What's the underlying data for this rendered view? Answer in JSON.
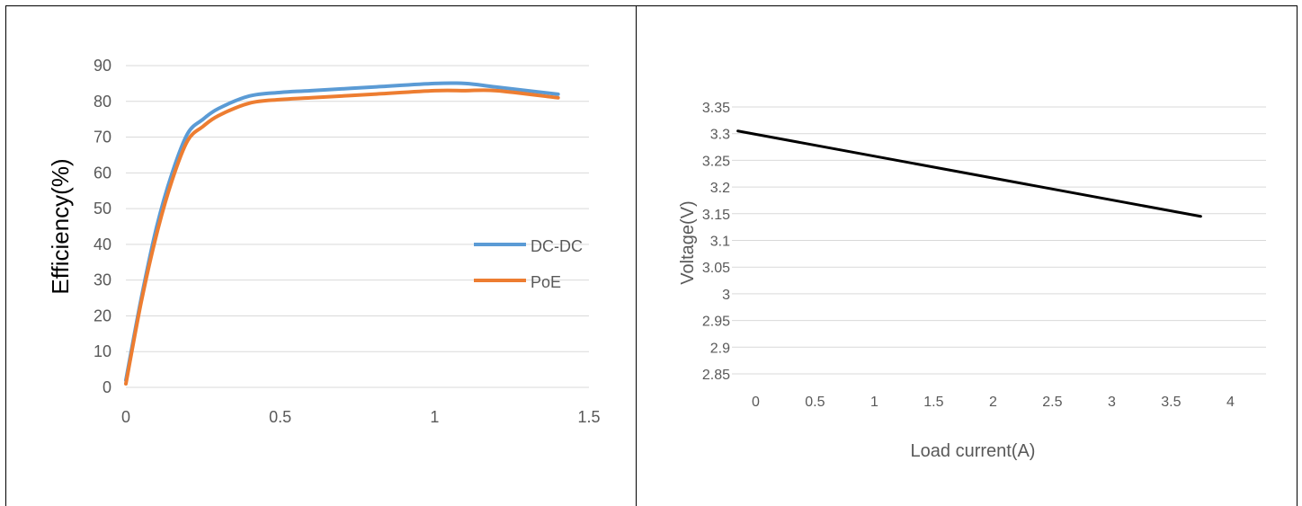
{
  "chart_data": [
    {
      "type": "line",
      "title": "",
      "xlabel": "",
      "ylabel": "Efficiency(%)",
      "xlim": [
        0,
        1.5
      ],
      "ylim": [
        0,
        90
      ],
      "x_ticks": [
        "0",
        "0.5",
        "1",
        "1.5"
      ],
      "y_ticks": [
        "0",
        "10",
        "20",
        "30",
        "40",
        "50",
        "60",
        "70",
        "80",
        "90"
      ],
      "grid": true,
      "legend": "right",
      "series": [
        {
          "name": "DC-DC",
          "color": "#5b9bd5",
          "x": [
            0,
            0.05,
            0.1,
            0.15,
            0.2,
            0.25,
            0.3,
            0.4,
            0.5,
            0.6,
            0.8,
            1.0,
            1.1,
            1.2,
            1.4
          ],
          "y": [
            2,
            25,
            45,
            60,
            71,
            75,
            78,
            81.5,
            82.5,
            83,
            84,
            85,
            85,
            84,
            82
          ]
        },
        {
          "name": "PoE",
          "color": "#ed7d31",
          "x": [
            0,
            0.05,
            0.1,
            0.15,
            0.2,
            0.25,
            0.3,
            0.4,
            0.5,
            0.6,
            0.8,
            1.0,
            1.1,
            1.2,
            1.4
          ],
          "y": [
            1,
            24,
            43,
            58,
            69,
            73,
            76,
            79.5,
            80.5,
            81,
            82,
            83,
            83,
            83,
            81
          ]
        }
      ]
    },
    {
      "type": "line",
      "title": "",
      "xlabel": "Load current(A)",
      "ylabel": "Voltage(V)",
      "xlim": [
        -0.2,
        4.3
      ],
      "ylim": [
        2.85,
        3.35
      ],
      "x_ticks": [
        "0",
        "0.5",
        "1",
        "1.5",
        "2",
        "2.5",
        "3",
        "3.5",
        "4"
      ],
      "y_ticks": [
        "2.85",
        "2.9",
        "2.95",
        "3",
        "3.05",
        "3.1",
        "3.15",
        "3.2",
        "3.25",
        "3.3",
        "3.35"
      ],
      "grid": true,
      "legend": "none",
      "series": [
        {
          "color": "#000000",
          "x": [
            -0.15,
            3.75
          ],
          "y": [
            3.305,
            3.145
          ]
        }
      ]
    }
  ]
}
